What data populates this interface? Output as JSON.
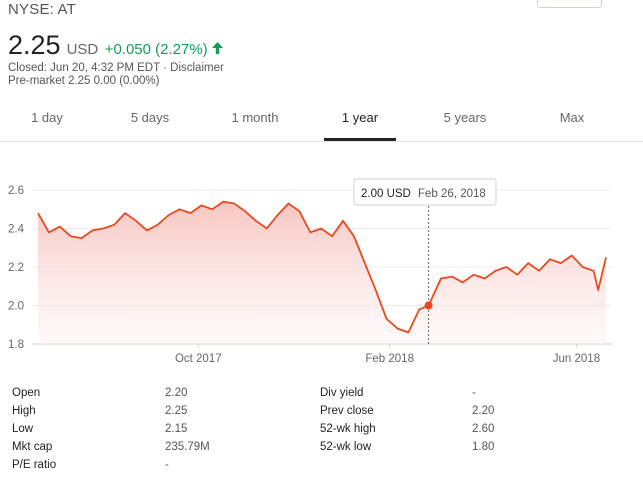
{
  "header": {
    "ticker": "NYSE: AT",
    "price": "2.25",
    "currency": "USD",
    "change": "+0.050 (2.27%)",
    "change_color": "#0f9d58",
    "closed_line": "Closed: Jun 20, 4:32 PM EDT · Disclaimer",
    "premarket_line": "Pre-market 2.25 0.00 (0.00%)"
  },
  "tabs": [
    {
      "label": "1 day"
    },
    {
      "label": "5 days"
    },
    {
      "label": "1 month"
    },
    {
      "label": "1 year",
      "active": true
    },
    {
      "label": "5 years"
    },
    {
      "label": "Max"
    }
  ],
  "chart_data": {
    "type": "area",
    "y_ticks": [
      "2.6",
      "2.4",
      "2.2",
      "2.0",
      "1.8"
    ],
    "x_ticks": [
      "Oct 2017",
      "Feb 2018",
      "Jun 2018"
    ],
    "ylim": [
      1.8,
      2.6
    ],
    "line_color": "#e8491d",
    "tooltip": {
      "value": "2.00 USD",
      "date": "Feb 26, 2018"
    },
    "series": [
      {
        "x": [
          "2017-06-20",
          "2017-06-27",
          "2017-07-04",
          "2017-07-11",
          "2017-07-18",
          "2017-07-25",
          "2017-08-01",
          "2017-08-08",
          "2017-08-15",
          "2017-08-22",
          "2017-08-29",
          "2017-09-05",
          "2017-09-12",
          "2017-09-19",
          "2017-09-26",
          "2017-10-03",
          "2017-10-10",
          "2017-10-17",
          "2017-10-24",
          "2017-10-31",
          "2017-11-07",
          "2017-11-14",
          "2017-11-21",
          "2017-11-28",
          "2017-12-05",
          "2017-12-12",
          "2017-12-19",
          "2017-12-26",
          "2018-01-02",
          "2018-01-09",
          "2018-01-16",
          "2018-01-23",
          "2018-01-30",
          "2018-02-06",
          "2018-02-13",
          "2018-02-20",
          "2018-02-26",
          "2018-03-06",
          "2018-03-13",
          "2018-03-20",
          "2018-03-27",
          "2018-04-03",
          "2018-04-10",
          "2018-04-17",
          "2018-04-24",
          "2018-05-01",
          "2018-05-08",
          "2018-05-15",
          "2018-05-22",
          "2018-05-29",
          "2018-06-05",
          "2018-06-12",
          "2018-06-15",
          "2018-06-20"
        ],
        "y": [
          2.48,
          2.38,
          2.41,
          2.36,
          2.35,
          2.39,
          2.4,
          2.42,
          2.48,
          2.44,
          2.39,
          2.42,
          2.47,
          2.5,
          2.48,
          2.52,
          2.5,
          2.54,
          2.53,
          2.49,
          2.44,
          2.4,
          2.47,
          2.53,
          2.49,
          2.38,
          2.4,
          2.36,
          2.44,
          2.36,
          2.22,
          2.08,
          1.93,
          1.88,
          1.86,
          1.98,
          2.0,
          2.14,
          2.15,
          2.12,
          2.16,
          2.14,
          2.18,
          2.2,
          2.16,
          2.22,
          2.18,
          2.24,
          2.22,
          2.26,
          2.2,
          2.18,
          2.08,
          2.25
        ]
      }
    ]
  },
  "stats": {
    "left": [
      {
        "label": "Open",
        "value": "2.20"
      },
      {
        "label": "High",
        "value": "2.25"
      },
      {
        "label": "Low",
        "value": "2.15"
      },
      {
        "label": "Mkt cap",
        "value": "235.79M"
      },
      {
        "label": "P/E ratio",
        "value": "-"
      }
    ],
    "right": [
      {
        "label": "Div yield",
        "value": "-"
      },
      {
        "label": "Prev close",
        "value": "2.20"
      },
      {
        "label": "52-wk high",
        "value": "2.60"
      },
      {
        "label": "52-wk low",
        "value": "1.80"
      }
    ]
  }
}
